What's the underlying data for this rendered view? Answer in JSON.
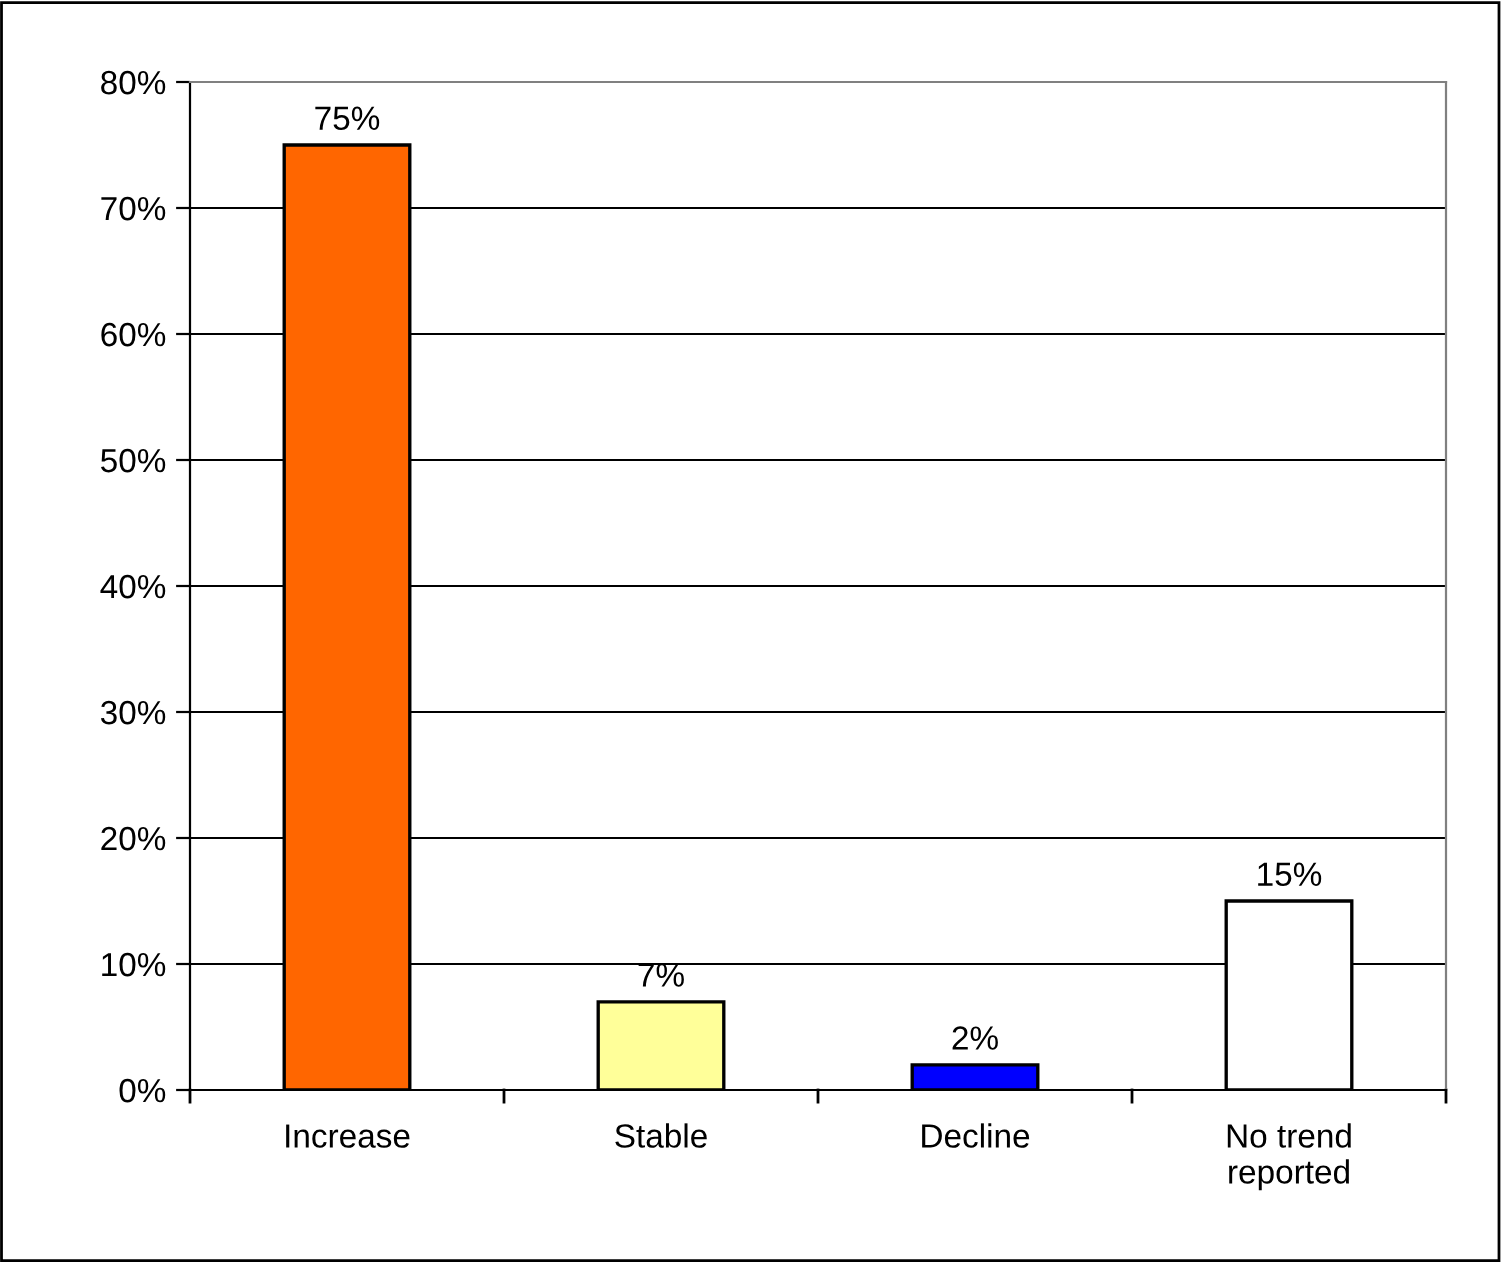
{
  "chart_data": {
    "type": "bar",
    "categories": [
      "Increase",
      "Stable",
      "Decline",
      "No trend\nreported"
    ],
    "values": [
      75,
      7,
      2,
      15
    ],
    "colors": [
      "#ff6600",
      "#ffff99",
      "#0000ff",
      "#ffffff"
    ],
    "value_labels": [
      "75%",
      "7%",
      "2%",
      "15%"
    ],
    "ylim": [
      0,
      80
    ],
    "yticks": [
      {
        "value": 0,
        "label": "0%"
      },
      {
        "value": 10,
        "label": "10%"
      },
      {
        "value": 20,
        "label": "20%"
      },
      {
        "value": 30,
        "label": "30%"
      },
      {
        "value": 40,
        "label": "40%"
      },
      {
        "value": 50,
        "label": "50%"
      },
      {
        "value": 60,
        "label": "60%"
      },
      {
        "value": 70,
        "label": "70%"
      },
      {
        "value": 80,
        "label": "80%"
      }
    ],
    "grid": "y",
    "legend": false
  }
}
